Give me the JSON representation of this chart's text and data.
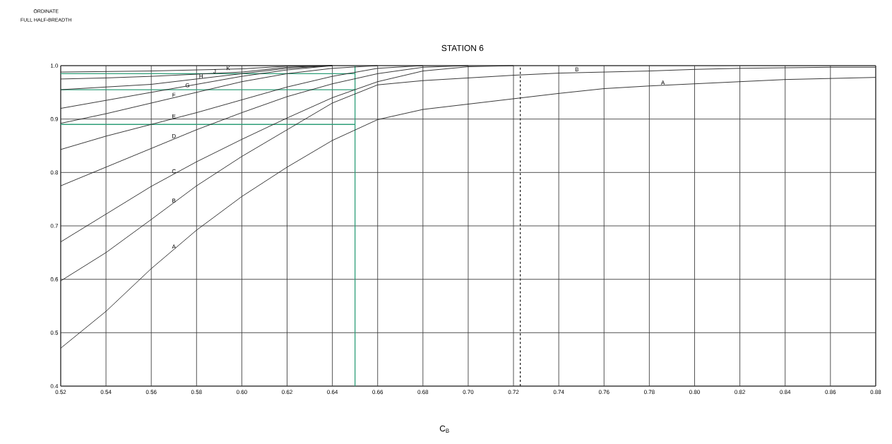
{
  "chart_data": {
    "type": "line",
    "title": "STATION 6",
    "xlabel": "C$_{B}$",
    "x": [
      0.52,
      0.54,
      0.56,
      0.58,
      0.6,
      0.62,
      0.64,
      0.66,
      0.68,
      0.7,
      0.72,
      0.74,
      0.76,
      0.78,
      0.8,
      0.82,
      0.84,
      0.86,
      0.88
    ],
    "series": [
      {
        "color": "#222222",
        "values": [
          0.471,
          0.54,
          0.62,
          0.692,
          0.755,
          0.81,
          0.86,
          0.899,
          0.918,
          0.928,
          0.938,
          0.948,
          0.957,
          0.962,
          0.966,
          0.97,
          0.974,
          0.976,
          0.978
        ]
      },
      {
        "color": "#222222",
        "values": [
          0.597,
          0.65,
          0.712,
          0.775,
          0.83,
          0.88,
          0.93,
          0.964,
          0.972,
          0.977,
          0.982,
          0.986,
          0.988,
          0.99,
          0.993,
          0.995,
          0.996,
          0.997,
          0.997
        ]
      },
      {
        "color": "#222222",
        "values": [
          0.67,
          0.722,
          0.774,
          0.82,
          0.862,
          0.902,
          0.94,
          0.97,
          0.99,
          0.998,
          1.0,
          null,
          null,
          null,
          null,
          null,
          null,
          null,
          null
        ]
      },
      {
        "color": "#222222",
        "values": [
          0.775,
          0.81,
          0.845,
          0.88,
          0.912,
          0.942,
          0.966,
          0.985,
          0.997,
          1.0,
          null,
          null,
          null,
          null,
          null,
          null,
          null,
          null,
          null
        ]
      },
      {
        "color": "#222222",
        "values": [
          0.843,
          0.868,
          0.89,
          0.912,
          0.936,
          0.96,
          0.98,
          0.995,
          1.0,
          null,
          null,
          null,
          null,
          null,
          null,
          null,
          null,
          null,
          null
        ]
      },
      {
        "color": "#222222",
        "values": [
          0.892,
          0.91,
          0.93,
          0.95,
          0.97,
          0.985,
          0.995,
          1.0,
          null,
          null,
          null,
          null,
          null,
          null,
          null,
          null,
          null,
          null,
          null
        ]
      },
      {
        "color": "#222222",
        "values": [
          0.92,
          0.935,
          0.95,
          0.965,
          0.98,
          0.992,
          1.0,
          null,
          null,
          null,
          null,
          null,
          null,
          null,
          null,
          null,
          null,
          null,
          null
        ]
      },
      {
        "color": "#222222",
        "values": [
          0.955,
          0.96,
          0.965,
          0.975,
          0.985,
          0.995,
          1.0,
          null,
          null,
          null,
          null,
          null,
          null,
          null,
          null,
          null,
          null,
          null,
          null
        ]
      },
      {
        "color": "#222222",
        "values": [
          0.975,
          0.977,
          0.98,
          0.984,
          0.988,
          0.997,
          1.0,
          null,
          null,
          null,
          null,
          null,
          null,
          null,
          null,
          null,
          null,
          null,
          null
        ]
      },
      {
        "color": "#222222",
        "values": [
          0.988,
          0.989,
          0.99,
          0.992,
          0.994,
          0.999,
          1.0,
          null,
          null,
          null,
          null,
          null,
          null,
          null,
          null,
          null,
          null,
          null,
          null
        ]
      }
    ],
    "xlim": [
      0.52,
      0.88
    ],
    "ylim": [
      0.4,
      1.0
    ],
    "xticks": [
      0.52,
      0.54,
      0.56,
      0.58,
      {
        "value": 0.6,
        "label": "0.60"
      },
      0.62,
      0.64,
      0.66,
      0.68,
      {
        "value": 0.7,
        "label": "0.70"
      },
      0.72,
      0.74,
      0.76,
      0.78,
      {
        "value": 0.8,
        "label": "0.80"
      },
      0.82,
      0.84,
      0.86,
      0.88
    ],
    "yticks": [
      0.4,
      0.5,
      0.6,
      0.7,
      0.8,
      0.9,
      {
        "value": 1.0,
        "label": "1.0"
      }
    ],
    "grid": true,
    "marker": "none",
    "line_style": "solid",
    "ref_lines": [
      {
        "axis": "x",
        "value": 0.65,
        "color": "#2e9e78"
      },
      {
        "axis": "y",
        "value": 0.89,
        "color": "#2e9e78"
      },
      {
        "axis": "y",
        "value": 0.955,
        "color": "#2e9e78"
      },
      {
        "axis": "y",
        "value": 0.985,
        "color": "#2e9e78"
      },
      {
        "axis": "x",
        "value": 0.723,
        "color": "#222222",
        "line_style": "dashed"
      }
    ],
    "annotations": [
      "ORDINATE",
      "FULL HALF-BREADTH",
      {
        "text": "A",
        "x": 0.57,
        "y": 0.656
      },
      {
        "text": "B",
        "x": 0.57,
        "y": 0.742
      },
      {
        "text": "C",
        "x": 0.57,
        "y": 0.797
      },
      {
        "text": "D",
        "x": 0.57,
        "y": 0.863
      },
      {
        "text": "E",
        "x": 0.57,
        "y": 0.9
      },
      {
        "text": "F",
        "x": 0.57,
        "y": 0.94
      },
      {
        "text": "G",
        "x": 0.576,
        "y": 0.958
      },
      {
        "text": "H",
        "x": 0.582,
        "y": 0.975
      },
      {
        "text": "J",
        "x": 0.588,
        "y": 0.984
      },
      {
        "text": "K",
        "x": 0.594,
        "y": 0.99
      },
      {
        "text": "B",
        "x": 0.748,
        "y": 0.988
      },
      {
        "text": "A",
        "x": 0.786,
        "y": 0.963
      }
    ]
  }
}
